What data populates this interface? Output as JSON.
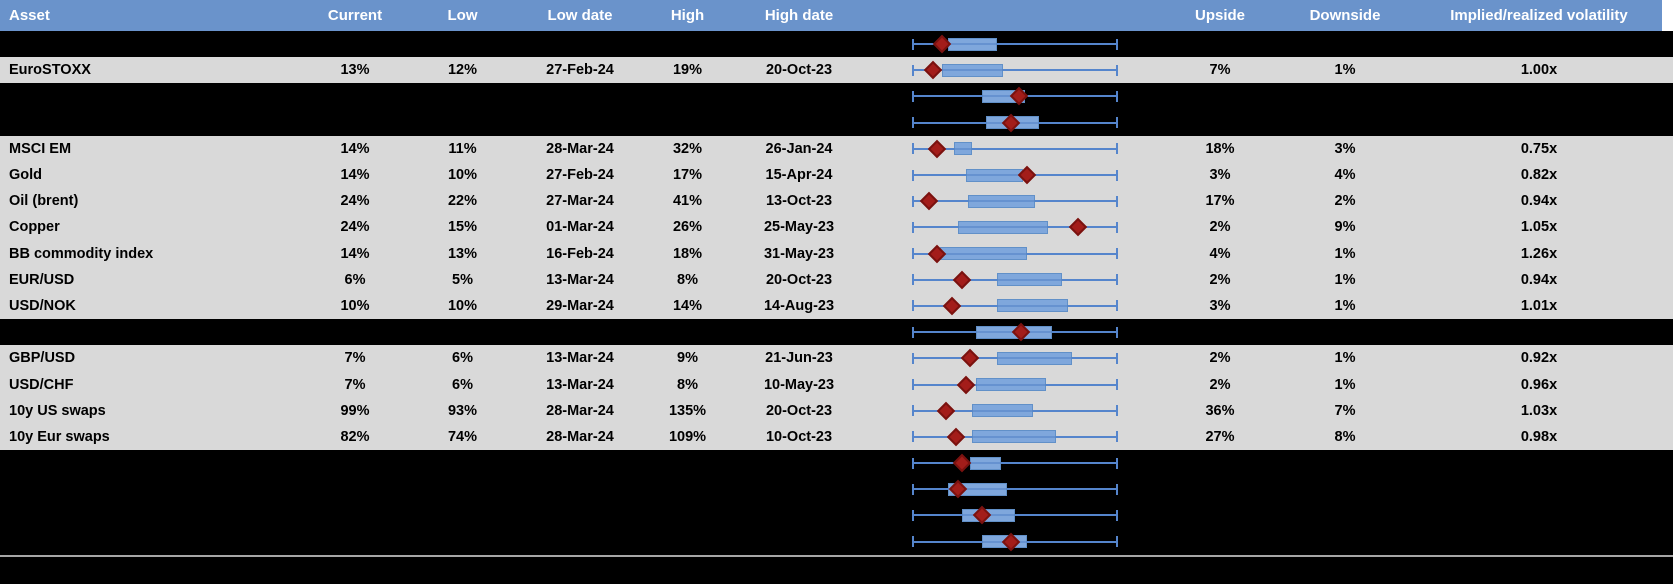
{
  "chart_data": {
    "type": "table",
    "columns": [
      {
        "key": "asset",
        "label": "Asset"
      },
      {
        "key": "current",
        "label": "Current"
      },
      {
        "key": "low",
        "label": "Low"
      },
      {
        "key": "low_date",
        "label": "Low date"
      },
      {
        "key": "high",
        "label": "High"
      },
      {
        "key": "high_date",
        "label": "High date"
      },
      {
        "key": "chart",
        "label": ""
      },
      {
        "key": "upside",
        "label": "Upside"
      },
      {
        "key": "downside",
        "label": "Downside"
      },
      {
        "key": "vol",
        "label": "Implied/realized volatility"
      }
    ],
    "boxplot_legend": {
      "whisker_range_frac": [
        0,
        1
      ],
      "box_meaning": "interquartile band of 52-week range (normalized per row)",
      "diamond_meaning": "current level marker"
    },
    "rows": [
      {
        "asset": "",
        "current": "",
        "low": "",
        "low_date": "",
        "high": "",
        "high_date": "",
        "upside": "",
        "downside": "",
        "vol": "",
        "bg": "black",
        "bp": {
          "box": [
            0.17,
            0.41
          ],
          "diamond": 0.14
        }
      },
      {
        "asset": "EuroSTOXX",
        "current": "13%",
        "low": "12%",
        "low_date": "27-Feb-24",
        "high": "19%",
        "high_date": "20-Oct-23",
        "upside": "7%",
        "downside": "1%",
        "vol": "1.00x",
        "bg": "gray",
        "bp": {
          "box": [
            0.14,
            0.44
          ],
          "diamond": 0.1
        }
      },
      {
        "asset": "",
        "current": "",
        "low": "",
        "low_date": "",
        "high": "",
        "high_date": "",
        "upside": "",
        "downside": "",
        "vol": "",
        "bg": "black",
        "bp": {
          "box": [
            0.34,
            0.55
          ],
          "diamond": 0.52
        }
      },
      {
        "asset": "",
        "current": "",
        "low": "",
        "low_date": "",
        "high": "",
        "high_date": "",
        "upside": "",
        "downside": "",
        "vol": "",
        "bg": "black",
        "bp": {
          "box": [
            0.36,
            0.62
          ],
          "diamond": 0.48
        }
      },
      {
        "asset": "MSCI EM",
        "current": "14%",
        "low": "11%",
        "low_date": "28-Mar-24",
        "high": "32%",
        "high_date": "26-Jan-24",
        "upside": "18%",
        "downside": "3%",
        "vol": "0.75x",
        "bg": "gray",
        "bp": {
          "box": [
            0.2,
            0.29
          ],
          "diamond": 0.12
        }
      },
      {
        "asset": "Gold",
        "current": "14%",
        "low": "10%",
        "low_date": "27-Feb-24",
        "high": "17%",
        "high_date": "15-Apr-24",
        "upside": "3%",
        "downside": "4%",
        "vol": "0.82x",
        "bg": "gray",
        "bp": {
          "box": [
            0.26,
            0.54
          ],
          "diamond": 0.56
        }
      },
      {
        "asset": "Oil (brent)",
        "current": "24%",
        "low": "22%",
        "low_date": "27-Mar-24",
        "high": "41%",
        "high_date": "13-Oct-23",
        "upside": "17%",
        "downside": "2%",
        "vol": "0.94x",
        "bg": "gray",
        "bp": {
          "box": [
            0.27,
            0.6
          ],
          "diamond": 0.08
        }
      },
      {
        "asset": "Copper",
        "current": "24%",
        "low": "15%",
        "low_date": "01-Mar-24",
        "high": "26%",
        "high_date": "25-May-23",
        "upside": "2%",
        "downside": "9%",
        "vol": "1.05x",
        "bg": "gray",
        "bp": {
          "box": [
            0.22,
            0.66
          ],
          "diamond": 0.81
        }
      },
      {
        "asset": "BB commodity index",
        "current": "14%",
        "low": "13%",
        "low_date": "16-Feb-24",
        "high": "18%",
        "high_date": "31-May-23",
        "upside": "4%",
        "downside": "1%",
        "vol": "1.26x",
        "bg": "gray",
        "bp": {
          "box": [
            0.13,
            0.56
          ],
          "diamond": 0.12
        }
      },
      {
        "asset": "EUR/USD",
        "current": "6%",
        "low": "5%",
        "low_date": "13-Mar-24",
        "high": "8%",
        "high_date": "20-Oct-23",
        "upside": "2%",
        "downside": "1%",
        "vol": "0.94x",
        "bg": "gray",
        "bp": {
          "box": [
            0.41,
            0.73
          ],
          "diamond": 0.24
        }
      },
      {
        "asset": "USD/NOK",
        "current": "10%",
        "low": "10%",
        "low_date": "29-Mar-24",
        "high": "14%",
        "high_date": "14-Aug-23",
        "upside": "3%",
        "downside": "1%",
        "vol": "1.01x",
        "bg": "gray",
        "bp": {
          "box": [
            0.41,
            0.76
          ],
          "diamond": 0.19
        }
      },
      {
        "asset": "",
        "current": "",
        "low": "",
        "low_date": "",
        "high": "",
        "high_date": "",
        "upside": "",
        "downside": "",
        "vol": "",
        "bg": "black",
        "bp": {
          "box": [
            0.31,
            0.68
          ],
          "diamond": 0.53
        }
      },
      {
        "asset": "GBP/USD",
        "current": "7%",
        "low": "6%",
        "low_date": "13-Mar-24",
        "high": "9%",
        "high_date": "21-Jun-23",
        "upside": "2%",
        "downside": "1%",
        "vol": "0.92x",
        "bg": "gray",
        "bp": {
          "box": [
            0.41,
            0.78
          ],
          "diamond": 0.28
        }
      },
      {
        "asset": "USD/CHF",
        "current": "7%",
        "low": "6%",
        "low_date": "13-Mar-24",
        "high": "8%",
        "high_date": "10-May-23",
        "upside": "2%",
        "downside": "1%",
        "vol": "0.96x",
        "bg": "gray",
        "bp": {
          "box": [
            0.31,
            0.65
          ],
          "diamond": 0.26
        }
      },
      {
        "asset": "10y US swaps",
        "current": "99%",
        "low": "93%",
        "low_date": "28-Mar-24",
        "high": "135%",
        "high_date": "20-Oct-23",
        "upside": "36%",
        "downside": "7%",
        "vol": "1.03x",
        "bg": "gray",
        "bp": {
          "box": [
            0.29,
            0.59
          ],
          "diamond": 0.16
        }
      },
      {
        "asset": "10y Eur swaps",
        "current": "82%",
        "low": "74%",
        "low_date": "28-Mar-24",
        "high": "109%",
        "high_date": "10-Oct-23",
        "upside": "27%",
        "downside": "8%",
        "vol": "0.98x",
        "bg": "gray",
        "bp": {
          "box": [
            0.29,
            0.7
          ],
          "diamond": 0.21
        }
      },
      {
        "asset": "",
        "current": "",
        "low": "",
        "low_date": "",
        "high": "",
        "high_date": "",
        "upside": "",
        "downside": "",
        "vol": "",
        "bg": "black",
        "bp": {
          "box": [
            0.28,
            0.43
          ],
          "diamond": 0.24
        }
      },
      {
        "asset": "",
        "current": "",
        "low": "",
        "low_date": "",
        "high": "",
        "high_date": "",
        "upside": "",
        "downside": "",
        "vol": "",
        "bg": "black",
        "bp": {
          "box": [
            0.17,
            0.46
          ],
          "diamond": 0.22
        }
      },
      {
        "asset": "",
        "current": "",
        "low": "",
        "low_date": "",
        "high": "",
        "high_date": "",
        "upside": "",
        "downside": "",
        "vol": "",
        "bg": "black",
        "bp": {
          "box": [
            0.24,
            0.5
          ],
          "diamond": 0.34
        }
      },
      {
        "asset": "",
        "current": "",
        "low": "",
        "low_date": "",
        "high": "",
        "high_date": "",
        "upside": "",
        "downside": "",
        "vol": "",
        "bg": "black",
        "bp": {
          "box": [
            0.34,
            0.56
          ],
          "diamond": 0.48
        }
      }
    ]
  },
  "colors": {
    "header_blue": "#6A93CB",
    "row_gray": "#D9D9D9",
    "row_black": "#000000",
    "box_fill": "#7FA7DC",
    "box_border": "#6190C8",
    "whisker_blue": "#5585CC",
    "diamond_fill": "#A31D1A",
    "diamond_border": "#7A120F",
    "bottom_line_gray": "#A6A6A6",
    "header_text": "#FFFFFF"
  }
}
